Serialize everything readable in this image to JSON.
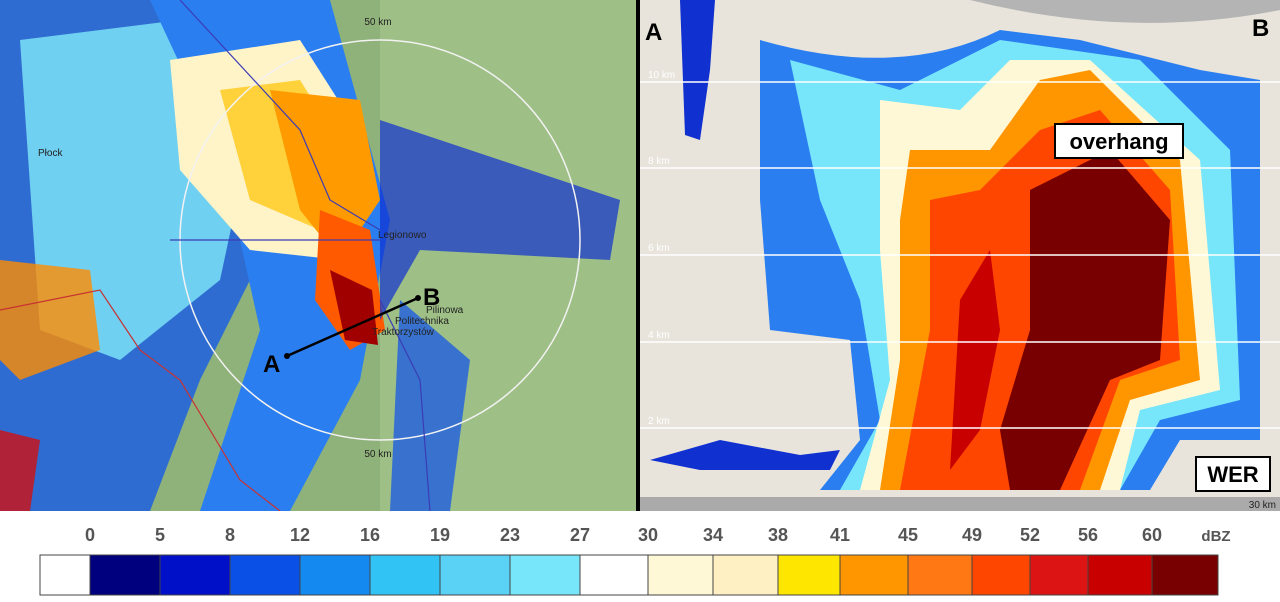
{
  "map": {
    "labels": [
      "50 km",
      "50 km",
      "Płock",
      "Legionowo",
      "Pilinowa",
      "Politechnika",
      "Traktorzystów"
    ],
    "point_a": "A",
    "point_b": "B"
  },
  "cross_section": {
    "left_label": "A",
    "right_label": "B",
    "heights": [
      "10 km",
      "8 km",
      "6 km",
      "4 km",
      "2 km"
    ],
    "range_label": "30 km",
    "annotations": [
      "overhang",
      "WER"
    ]
  },
  "colorbar": {
    "ticks": [
      0,
      5,
      8,
      12,
      16,
      19,
      23,
      27,
      30,
      34,
      38,
      41,
      45,
      49,
      52,
      56,
      60
    ],
    "unit": "dBZ",
    "colors": [
      "#ffffff",
      "#00007f",
      "#0010c8",
      "#0a50e6",
      "#1489f0",
      "#32c3f5",
      "#5ad2f5",
      "#78e6fa",
      "#ffffff",
      "#fff8d7",
      "#fff0c3",
      "#ffe600",
      "#ff9600",
      "#ff7814",
      "#ff4600",
      "#dc1414",
      "#c80000",
      "#780000"
    ]
  }
}
